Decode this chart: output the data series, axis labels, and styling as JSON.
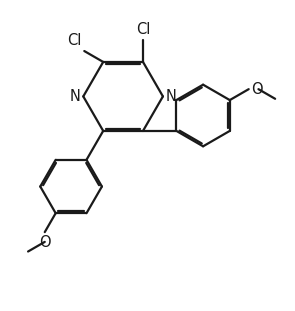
{
  "bg_color": "#ffffff",
  "line_color": "#1a1a1a",
  "line_width": 1.6,
  "font_size": 10.5,
  "figsize": [
    2.95,
    3.11
  ],
  "dpi": 100,
  "xlim": [
    -1.5,
    9.0
  ],
  "ylim": [
    -3.5,
    8.5
  ]
}
